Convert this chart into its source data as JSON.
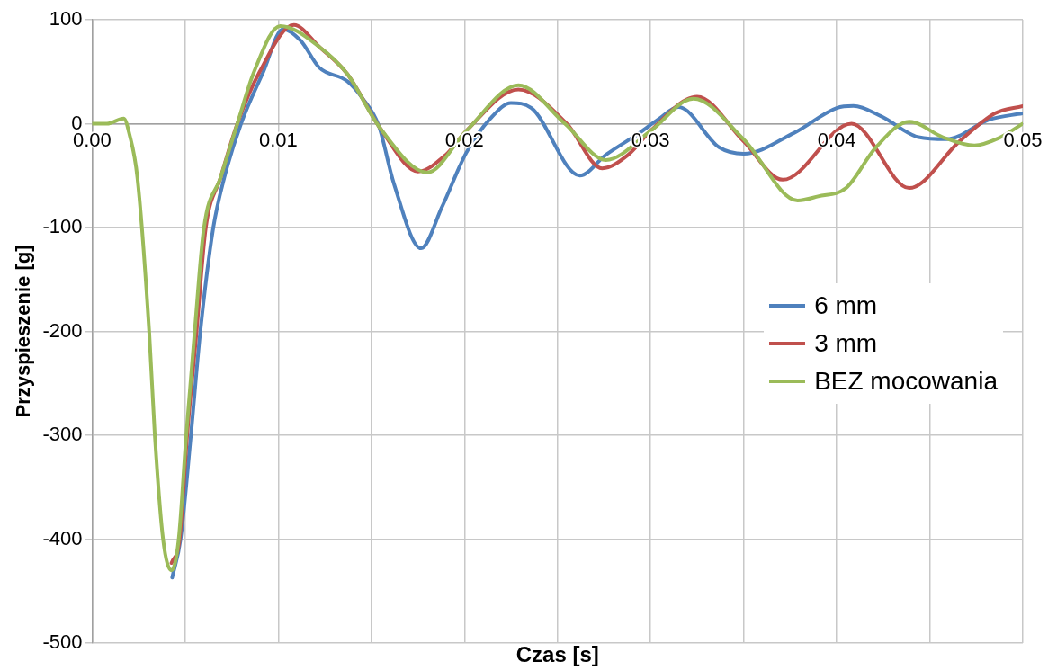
{
  "chart_data": {
    "type": "line",
    "xlabel": "Czas [s]",
    "ylabel": "Przyspieszenie [g]",
    "xlim": [
      0,
      0.05
    ],
    "ylim": [
      -500,
      100
    ],
    "xticks": [
      {
        "value": 0,
        "label": "0.00"
      },
      {
        "value": 0.005,
        "label": null
      },
      0.01,
      {
        "value": 0.015,
        "label": null
      },
      0.02,
      {
        "value": 0.025,
        "label": null
      },
      0.03,
      {
        "value": 0.035,
        "label": null
      },
      0.04,
      {
        "value": 0.045,
        "label": null
      },
      0.05
    ],
    "yticks": [
      -500,
      -400,
      -300,
      -200,
      -100,
      0,
      100
    ],
    "grid": true,
    "legend": "right",
    "marker": "none",
    "line_style": "solid",
    "series": [
      {
        "name": "6 mm",
        "color": "#4f81bd",
        "x": [
          0.0043,
          0.00475,
          0.0053,
          0.0058,
          0.0065,
          0.0071,
          0.008,
          0.0092,
          0.01025,
          0.0112,
          0.0122,
          0.0137,
          0.0145,
          0.0154,
          0.0162,
          0.01767,
          0.0188,
          0.0201,
          0.0214,
          0.0225,
          0.0236,
          0.0262,
          0.0276,
          0.0294,
          0.0304,
          0.0315,
          0.0337,
          0.035,
          0.0377,
          0.04,
          0.0409,
          0.0424,
          0.0444,
          0.0459,
          0.0482,
          0.05
        ],
        "values": [
          -437,
          -400,
          -301,
          -202,
          -101,
          -52,
          0,
          50,
          91,
          80,
          54,
          41,
          25,
          -2,
          -57,
          -120,
          -80,
          -28,
          5,
          20,
          15,
          -50,
          -30,
          -9,
          4,
          16,
          -23,
          -29,
          -9,
          15,
          17,
          7,
          -13,
          -15,
          4,
          10
        ]
      },
      {
        "name": "3 mm",
        "color": "#c0504d",
        "x": [
          0.00426,
          0.0047,
          0.0051,
          0.0056,
          0.0061,
          0.0069,
          0.0078,
          0.009,
          0.01084,
          0.0122,
          0.0137,
          0.0155,
          0.0175,
          0.019,
          0.0201,
          0.0229,
          0.0255,
          0.0274,
          0.0288,
          0.03,
          0.0325,
          0.035,
          0.0371,
          0.0408,
          0.0439,
          0.0466,
          0.0485,
          0.05
        ],
        "values": [
          -423,
          -400,
          -301,
          -202,
          -101,
          -52,
          0,
          50,
          95,
          74,
          48,
          -5,
          -46,
          -30,
          -7,
          33,
          0,
          -43,
          -30,
          -7,
          26,
          -17,
          -54,
          0,
          -62,
          -17,
          10,
          17
        ]
      },
      {
        "name": "BEZ mocowania",
        "color": "#9bbb59",
        "x": [
          0,
          0.0008,
          0.0017,
          0.002,
          0.00243,
          0.00307,
          0.00337,
          0.00381,
          0.00426,
          0.00465,
          0.00505,
          0.0055,
          0.006,
          0.0069,
          0.0078,
          0.0087,
          0.0101,
          0.0122,
          0.0137,
          0.0155,
          0.018,
          0.0201,
          0.0229,
          0.0254,
          0.0276,
          0.03,
          0.0323,
          0.035,
          0.0379,
          0.039,
          0.0405,
          0.0421,
          0.0439,
          0.0457,
          0.0474,
          0.0487,
          0.05
        ],
        "values": [
          0,
          0,
          5,
          -10,
          -52,
          -202,
          -301,
          -400,
          -430,
          -400,
          -301,
          -202,
          -101,
          -52,
          0,
          50,
          94,
          74,
          48,
          -5,
          -47,
          -7,
          37,
          0,
          -35,
          -7,
          24,
          -15,
          -74,
          -70,
          -62,
          -23,
          2,
          -13,
          -21,
          -14,
          0
        ]
      }
    ]
  }
}
